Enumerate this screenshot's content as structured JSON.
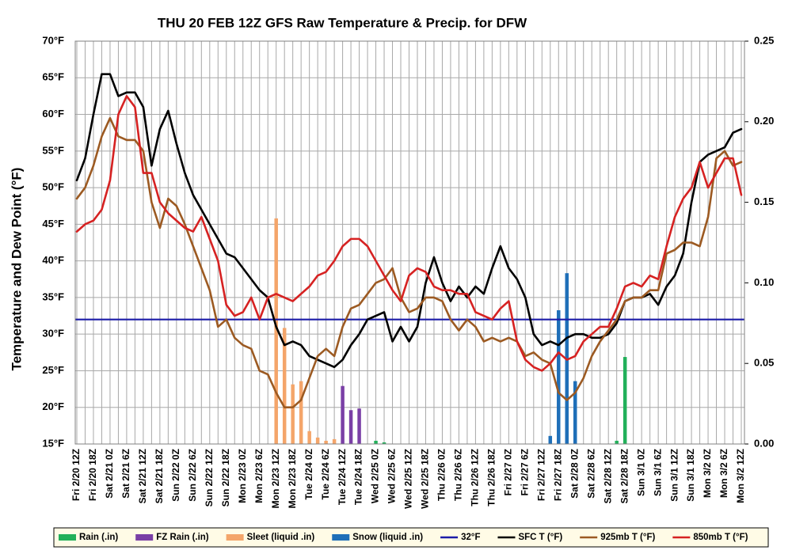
{
  "chart_data": {
    "type": "combo",
    "title": "THU 20 FEB 12Z GFS Raw Temperature & Precip. for DFW",
    "y_label": "Temperature and Dew Point (°F)",
    "categories": [
      "Fri 2/20 12Z",
      null,
      "Fri 2/20 18Z",
      null,
      "Sat 2/21 0Z",
      null,
      "Sat 2/21 6Z",
      null,
      "Sat 2/21 12Z",
      null,
      "Sat 2/21 18Z",
      null,
      "Sun 2/22 0Z",
      null,
      "Sun 2/22 6Z",
      null,
      "Sun 2/22 12Z",
      null,
      "Sun 2/22 18Z",
      null,
      "Mon 2/23 0Z",
      null,
      "Mon 2/23 6Z",
      null,
      "Mon 2/23 12Z",
      null,
      "Mon 2/23 18Z",
      null,
      "Tue 2/24 0Z",
      null,
      "Tue 2/24 6Z",
      null,
      "Tue 2/24 12Z",
      null,
      "Tue 2/24 18Z",
      null,
      "Wed 2/25 0Z",
      null,
      "Wed 2/25 6Z",
      null,
      "Wed 2/25 12Z",
      null,
      "Wed 2/25 18Z",
      null,
      "Thu 2/26 0Z",
      null,
      "Thu 2/26 6Z",
      null,
      "Thu 2/26 12Z",
      null,
      "Thu 2/26 18Z",
      null,
      "Fri 2/27 0Z",
      null,
      "Fri 2/27 6Z",
      null,
      "Fri 2/27 12Z",
      null,
      "Fri 2/27 18Z",
      null,
      "Sat 2/28 0Z",
      null,
      "Sat 2/28 6Z",
      null,
      "Sat 2/28 12Z",
      null,
      "Sat 2/28 18Z",
      null,
      "Sun 3/1 0Z",
      null,
      "Sun 3/1 6Z",
      null,
      "Sun 3/1 12Z",
      null,
      "Sun 3/1 18Z",
      null,
      "Mon 3/2 0Z",
      null,
      "Mon 3/2 6Z",
      null,
      "Mon 3/2 12Z"
    ],
    "ylim": [
      15,
      70
    ],
    "yticks": [
      {
        "value": 15,
        "label": "15°F"
      },
      {
        "value": 20,
        "label": "20°F"
      },
      {
        "value": 25,
        "label": "25°F"
      },
      {
        "value": 30,
        "label": "30°F"
      },
      {
        "value": 35,
        "label": "35°F"
      },
      {
        "value": 40,
        "label": "40°F"
      },
      {
        "value": 45,
        "label": "45°F"
      },
      {
        "value": 50,
        "label": "50°F"
      },
      {
        "value": 55,
        "label": "55°F"
      },
      {
        "value": 60,
        "label": "60°F"
      },
      {
        "value": 65,
        "label": "65°F"
      },
      {
        "value": 70,
        "label": "70°F"
      }
    ],
    "y2lim": [
      0,
      0.25
    ],
    "y2ticks": [
      {
        "value": 0,
        "label": "0.00"
      },
      0.05,
      {
        "value": 0.1,
        "label": "0.10"
      },
      0.15,
      {
        "value": 0.2,
        "label": "0.20"
      },
      0.25
    ],
    "grid": true,
    "legend": "bottom",
    "reference_lines": [
      {
        "name": "32°F",
        "value": 32,
        "color": "#1c1ca8"
      }
    ],
    "series": [
      {
        "name": "Rain (.in)",
        "type": "bar",
        "axis": "y2",
        "color": "#22b05a",
        "values": [
          0,
          0,
          0,
          0,
          0,
          0,
          0,
          0,
          0,
          0,
          0,
          0,
          0,
          0,
          0,
          0,
          0,
          0,
          0,
          0,
          0,
          0,
          0,
          0,
          0,
          0,
          0,
          0,
          0,
          0,
          0,
          0,
          0,
          0,
          0,
          0,
          0.002,
          0.001,
          0,
          0,
          0,
          0,
          0,
          0,
          0,
          0,
          0,
          0,
          0,
          0,
          0,
          0,
          0,
          0,
          0,
          0,
          0,
          0,
          0,
          0,
          0,
          0,
          0,
          0,
          0,
          0.002,
          0.054,
          0,
          0,
          0,
          0,
          0,
          0,
          0,
          0,
          0,
          0,
          0,
          0,
          0,
          0
        ]
      },
      {
        "name": "FZ Rain (.in)",
        "type": "bar",
        "axis": "y2",
        "color": "#7a3fa6",
        "values": [
          0,
          0,
          0,
          0,
          0,
          0,
          0,
          0,
          0,
          0,
          0,
          0,
          0,
          0,
          0,
          0,
          0,
          0,
          0,
          0,
          0,
          0,
          0,
          0,
          0,
          0,
          0,
          0,
          0,
          0,
          0,
          0,
          0.036,
          0.021,
          0.022,
          0,
          0,
          0,
          0,
          0,
          0,
          0,
          0,
          0,
          0,
          0,
          0,
          0,
          0,
          0,
          0,
          0,
          0,
          0,
          0,
          0,
          0,
          0,
          0,
          0,
          0,
          0,
          0,
          0,
          0,
          0,
          0,
          0,
          0,
          0,
          0,
          0,
          0,
          0,
          0,
          0,
          0,
          0,
          0,
          0,
          0
        ]
      },
      {
        "name": "Sleet (liquid .in)",
        "type": "bar",
        "axis": "y2",
        "color": "#f4a56a",
        "values": [
          0,
          0,
          0,
          0,
          0,
          0,
          0,
          0,
          0,
          0,
          0,
          0,
          0,
          0,
          0,
          0,
          0,
          0,
          0,
          0,
          0,
          0,
          0,
          0,
          0.14,
          0.072,
          0.037,
          0.039,
          0.008,
          0.004,
          0.002,
          0.003,
          0,
          0,
          0,
          0,
          0,
          0,
          0,
          0,
          0,
          0,
          0,
          0,
          0,
          0,
          0,
          0,
          0,
          0,
          0,
          0,
          0,
          0,
          0,
          0,
          0,
          0,
          0,
          0,
          0,
          0,
          0,
          0,
          0,
          0,
          0,
          0,
          0,
          0,
          0,
          0,
          0,
          0,
          0,
          0,
          0,
          0,
          0,
          0,
          0
        ]
      },
      {
        "name": "Snow (liquid .in)",
        "type": "bar",
        "axis": "y2",
        "color": "#1f6fb8",
        "values": [
          0,
          0,
          0,
          0,
          0,
          0,
          0,
          0,
          0,
          0,
          0,
          0,
          0,
          0,
          0,
          0,
          0,
          0,
          0,
          0,
          0,
          0,
          0,
          0,
          0,
          0,
          0,
          0,
          0,
          0,
          0,
          0,
          0,
          0,
          0,
          0,
          0,
          0,
          0,
          0,
          0,
          0,
          0,
          0,
          0,
          0,
          0,
          0,
          0,
          0,
          0,
          0,
          0,
          0,
          0,
          0,
          0,
          0.005,
          0.083,
          0.106,
          0.039,
          0,
          0,
          0,
          0,
          0,
          0,
          0,
          0,
          0,
          0,
          0,
          0,
          0,
          0,
          0,
          0,
          0,
          0,
          0,
          0
        ]
      },
      {
        "name": "SFC T (°F)",
        "type": "line",
        "color": "#000000",
        "values": [
          51,
          54,
          60,
          65.5,
          65.5,
          62.5,
          63,
          63,
          61,
          53,
          58,
          60.5,
          56,
          52,
          49,
          47,
          45,
          43,
          41,
          40.5,
          39,
          37.5,
          36,
          35,
          31,
          28.5,
          29,
          28.5,
          27,
          26.5,
          26,
          25.5,
          26.5,
          28.5,
          30,
          32,
          32.5,
          33,
          29,
          31,
          29,
          31,
          37,
          40.5,
          37,
          34.5,
          36.5,
          35,
          36.5,
          35.5,
          39,
          42,
          39,
          37.5,
          35,
          30,
          28.5,
          29,
          28.5,
          29.5,
          30,
          30,
          29.5,
          29.5,
          30,
          31.5,
          34.5,
          35,
          35,
          35.5,
          34,
          36.5,
          38,
          41,
          48,
          53.5,
          54.5,
          55,
          55.5,
          57.5,
          58
        ]
      },
      {
        "name": "925mb T (°F)",
        "type": "line",
        "color": "#9c5a22",
        "values": [
          48.5,
          50,
          53,
          57,
          59.5,
          57,
          56.5,
          56.5,
          55,
          48,
          44.5,
          48.5,
          47.5,
          45,
          42,
          39,
          36,
          31,
          32,
          29.5,
          28.5,
          28,
          25,
          24.5,
          22,
          20,
          20,
          21,
          24,
          27,
          28,
          27,
          31,
          33.5,
          34,
          35.5,
          37,
          37.5,
          39,
          35,
          33,
          33.5,
          35,
          35,
          34.5,
          32,
          30.5,
          32,
          31,
          29,
          29.5,
          29,
          29.5,
          29,
          27,
          27.5,
          26.5,
          26,
          22,
          21,
          22,
          24,
          27,
          29,
          30.5,
          32,
          34.5,
          35,
          35,
          36,
          36,
          41,
          41.5,
          42.5,
          42.5,
          42,
          46,
          54,
          55,
          53,
          53.5
        ]
      },
      {
        "name": "850mb T (°F)",
        "type": "line",
        "color": "#d62222",
        "values": [
          44,
          45,
          45.5,
          47,
          51,
          60,
          62.5,
          61,
          52,
          52,
          48,
          46.5,
          45.5,
          44.5,
          44,
          46,
          43,
          40,
          34,
          32.5,
          33,
          35,
          32,
          35,
          35.5,
          35,
          34.5,
          35.5,
          36.5,
          38,
          38.5,
          40,
          42,
          43,
          43,
          42,
          40,
          38,
          36,
          34.5,
          38,
          39,
          38.5,
          36.5,
          36,
          36,
          35.5,
          35.5,
          33,
          32.5,
          32,
          33.5,
          34.5,
          29,
          26.5,
          25.5,
          25,
          26,
          27.5,
          26.5,
          27,
          29,
          30,
          31,
          31,
          33.5,
          36.5,
          37,
          36.5,
          38,
          37.5,
          42,
          46,
          48.5,
          50,
          53.5,
          50,
          52,
          54,
          54,
          49
        ]
      }
    ]
  }
}
